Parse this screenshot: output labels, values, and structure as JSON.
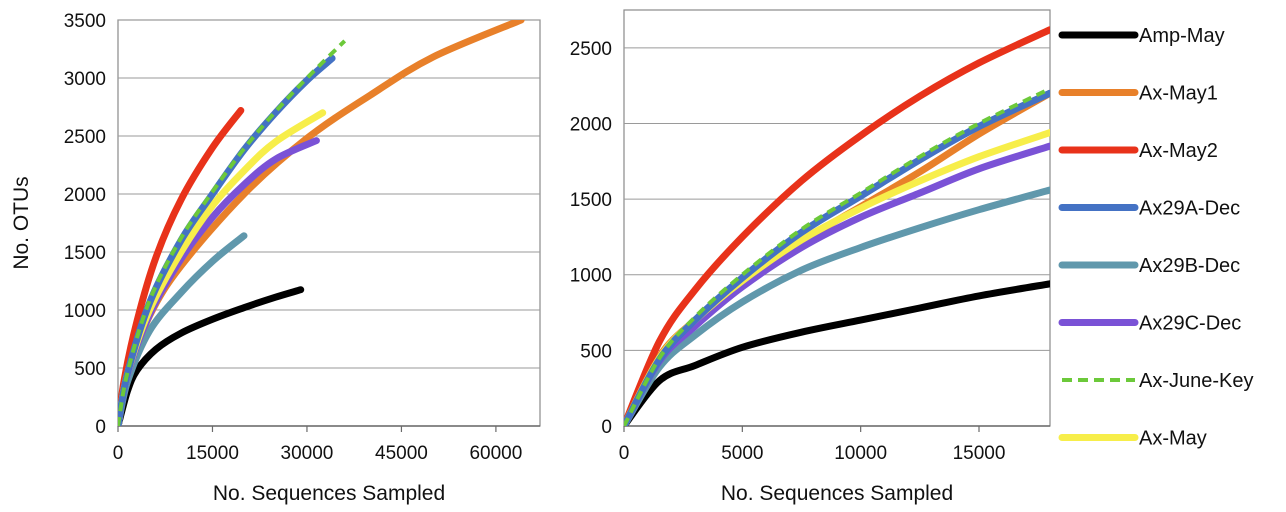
{
  "chart_data": [
    {
      "type": "line",
      "title": "",
      "xlabel": "No. Sequences Sampled",
      "ylabel": "No. OTUs",
      "xlim": [
        0,
        67000
      ],
      "ylim": [
        0,
        3500
      ],
      "xticks": [
        0,
        15000,
        30000,
        45000,
        60000
      ],
      "yticks": [
        0,
        500,
        1000,
        1500,
        2000,
        2500,
        3000,
        3500
      ],
      "xtick_labels": [
        "0",
        "15000",
        "30000",
        "45000",
        "60000"
      ],
      "ytick_labels": [
        "0",
        "500",
        "1000",
        "1500",
        "2000",
        "2500",
        "3000",
        "3500"
      ],
      "grid": "horizontal",
      "series": [
        {
          "name": "Amp-May",
          "color": "#000000",
          "style": "solid",
          "x": [
            0,
            1500,
            3000,
            6000,
            10000,
            15000,
            20000,
            25000,
            29000
          ],
          "y": [
            0,
            300,
            480,
            660,
            800,
            920,
            1020,
            1110,
            1175
          ]
        },
        {
          "name": "Ax-May1",
          "color": "#E8802A",
          "style": "solid",
          "x": [
            0,
            1500,
            5000,
            10000,
            20000,
            30000,
            40000,
            50000,
            64000
          ],
          "y": [
            0,
            450,
            950,
            1380,
            2000,
            2480,
            2850,
            3180,
            3500
          ]
        },
        {
          "name": "Ax-May2",
          "color": "#E8321A",
          "style": "solid",
          "x": [
            0,
            1000,
            3000,
            6000,
            10000,
            15000,
            19500
          ],
          "y": [
            0,
            400,
            900,
            1450,
            1950,
            2400,
            2720
          ]
        },
        {
          "name": "Ax29A-Dec",
          "color": "#4472C4",
          "style": "solid",
          "x": [
            0,
            1500,
            5000,
            10000,
            15000,
            20000,
            25000,
            30000,
            34000
          ],
          "y": [
            0,
            450,
            1060,
            1600,
            2000,
            2380,
            2700,
            2980,
            3170
          ]
        },
        {
          "name": "Ax29B-Dec",
          "color": "#6098AC",
          "style": "solid",
          "x": [
            0,
            1500,
            5000,
            10000,
            15000,
            20000
          ],
          "y": [
            0,
            380,
            820,
            1150,
            1420,
            1640
          ]
        },
        {
          "name": "Ax29C-Dec",
          "color": "#7A52D6",
          "style": "solid",
          "x": [
            0,
            1500,
            5000,
            10000,
            15000,
            20000,
            25000,
            31500
          ],
          "y": [
            0,
            440,
            960,
            1440,
            1800,
            2080,
            2300,
            2460
          ]
        },
        {
          "name": "Ax-June-Key",
          "color": "#6CC93A",
          "style": "dashed",
          "x": [
            0,
            1500,
            5000,
            10000,
            15000,
            20000,
            25000,
            30000,
            36000
          ],
          "y": [
            0,
            460,
            1080,
            1620,
            2020,
            2390,
            2710,
            3000,
            3320
          ]
        },
        {
          "name": "Ax-May",
          "color": "#F7EE4A",
          "style": "solid",
          "x": [
            0,
            1500,
            5000,
            10000,
            15000,
            20000,
            25000,
            32500
          ],
          "y": [
            0,
            450,
            1000,
            1500,
            1900,
            2200,
            2450,
            2700
          ]
        }
      ]
    },
    {
      "type": "line",
      "title": "",
      "xlabel": "No. Sequences Sampled",
      "ylabel": "",
      "xlim": [
        0,
        18000
      ],
      "ylim": [
        0,
        2750
      ],
      "xticks": [
        0,
        5000,
        10000,
        15000
      ],
      "yticks": [
        0,
        500,
        1000,
        1500,
        2000,
        2500
      ],
      "xtick_labels": [
        "0",
        "5000",
        "10000",
        "15000"
      ],
      "ytick_labels": [
        "0",
        "500",
        "1000",
        "1500",
        "2000",
        "2500"
      ],
      "grid": "horizontal",
      "series": [
        {
          "name": "Amp-May",
          "color": "#000000",
          "style": "solid",
          "x": [
            0,
            1500,
            3000,
            5000,
            7500,
            10000,
            12500,
            15000,
            18000
          ],
          "y": [
            0,
            300,
            400,
            520,
            620,
            700,
            780,
            860,
            940
          ]
        },
        {
          "name": "Ax-May1",
          "color": "#E8802A",
          "style": "solid",
          "x": [
            0,
            1500,
            3000,
            5000,
            7500,
            10000,
            12500,
            15000,
            18000
          ],
          "y": [
            0,
            460,
            700,
            950,
            1220,
            1450,
            1680,
            1930,
            2200
          ]
        },
        {
          "name": "Ax-May2",
          "color": "#E8321A",
          "style": "solid",
          "x": [
            0,
            1500,
            3000,
            5000,
            7500,
            10000,
            12500,
            15000,
            18000
          ],
          "y": [
            0,
            560,
            900,
            1250,
            1620,
            1920,
            2180,
            2400,
            2620
          ]
        },
        {
          "name": "Ax29A-Dec",
          "color": "#4472C4",
          "style": "solid",
          "x": [
            0,
            1500,
            3000,
            5000,
            7500,
            10000,
            12500,
            15000,
            18000
          ],
          "y": [
            0,
            440,
            700,
            980,
            1280,
            1520,
            1760,
            1980,
            2200
          ]
        },
        {
          "name": "Ax29B-Dec",
          "color": "#6098AC",
          "style": "solid",
          "x": [
            0,
            1500,
            3000,
            5000,
            7500,
            10000,
            12500,
            15000,
            18000
          ],
          "y": [
            0,
            390,
            600,
            820,
            1030,
            1180,
            1310,
            1430,
            1560
          ]
        },
        {
          "name": "Ax29C-Dec",
          "color": "#7A52D6",
          "style": "solid",
          "x": [
            0,
            1500,
            3000,
            5000,
            7500,
            10000,
            12500,
            15000,
            18000
          ],
          "y": [
            0,
            430,
            660,
            920,
            1180,
            1380,
            1540,
            1700,
            1850
          ]
        },
        {
          "name": "Ax-June-Key",
          "color": "#6CC93A",
          "style": "dashed",
          "x": [
            0,
            1500,
            3000,
            5000,
            7500,
            10000,
            12500,
            15000,
            18000
          ],
          "y": [
            0,
            450,
            720,
            1000,
            1300,
            1540,
            1780,
            2000,
            2230
          ]
        },
        {
          "name": "Ax-May",
          "color": "#F7EE4A",
          "style": "solid",
          "x": [
            0,
            1500,
            3000,
            5000,
            7500,
            10000,
            12500,
            15000,
            18000
          ],
          "y": [
            0,
            450,
            700,
            960,
            1230,
            1440,
            1620,
            1780,
            1940
          ]
        }
      ]
    }
  ],
  "legend": {
    "placement": "right",
    "entries": [
      {
        "name": "Amp-May",
        "color": "#000000",
        "style": "solid"
      },
      {
        "name": "Ax-May1",
        "color": "#E8802A",
        "style": "solid"
      },
      {
        "name": "Ax-May2",
        "color": "#E8321A",
        "style": "solid"
      },
      {
        "name": "Ax29A-Dec",
        "color": "#4472C4",
        "style": "solid"
      },
      {
        "name": "Ax29B-Dec",
        "color": "#6098AC",
        "style": "solid"
      },
      {
        "name": "Ax29C-Dec",
        "color": "#7A52D6",
        "style": "solid"
      },
      {
        "name": "Ax-June-Key",
        "color": "#6CC93A",
        "style": "dashed"
      },
      {
        "name": "Ax-May",
        "color": "#F7EE4A",
        "style": "solid"
      }
    ]
  }
}
